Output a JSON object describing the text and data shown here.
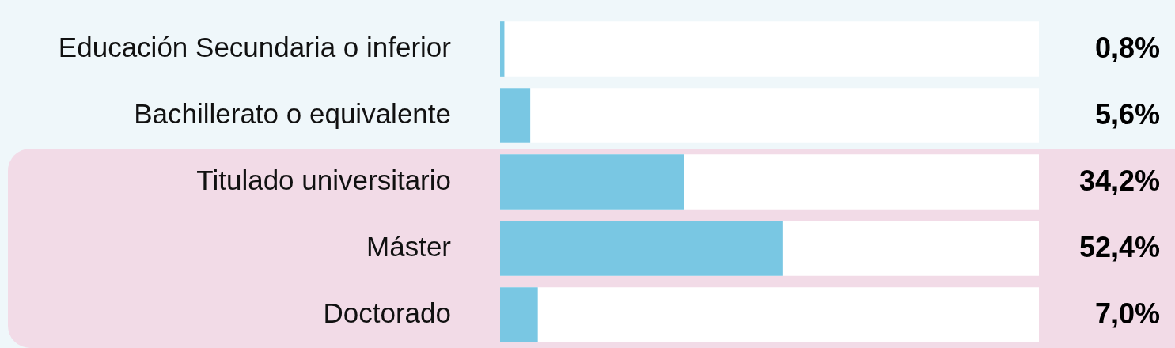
{
  "chart_data": {
    "type": "bar",
    "orientation": "horizontal",
    "categories": [
      "Educación Secundaria o inferior",
      "Bachillerato o equivalente",
      "Titulado universitario",
      "Máster",
      "Doctorado"
    ],
    "values": [
      0.8,
      5.6,
      34.2,
      52.4,
      7.0
    ],
    "color": "#79c7e3",
    "value_labels": [
      "0,8%",
      "5,6%",
      "34,2%",
      "52,4%",
      "7,0%"
    ],
    "xlim": [
      0,
      100
    ],
    "bands": [
      {
        "axis": "y",
        "from": "Titulado universitario",
        "to": "Doctorado",
        "color": "#f2dbe7"
      }
    ]
  }
}
